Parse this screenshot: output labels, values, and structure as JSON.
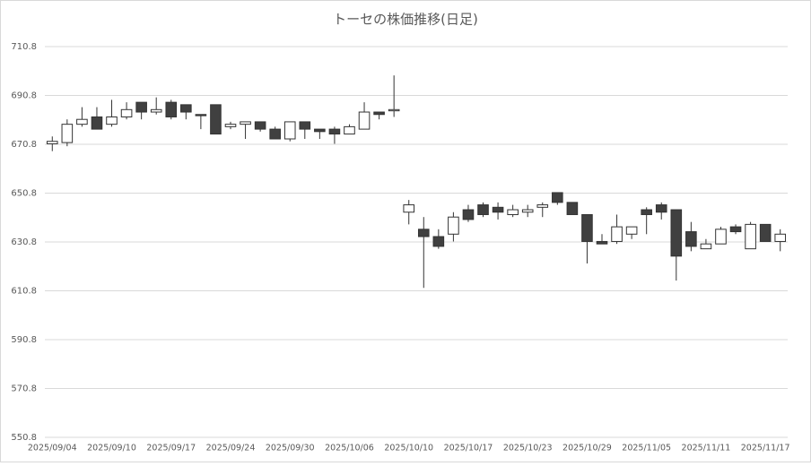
{
  "chart_data": {
    "type": "candlestick",
    "title": "トーセの株価推移(日足)",
    "categories": [
      "2025/09/04",
      null,
      null,
      null,
      "2025/09/10",
      null,
      null,
      null,
      "2025/09/17",
      null,
      null,
      null,
      "2025/09/24",
      null,
      null,
      null,
      "2025/09/30",
      null,
      null,
      null,
      "2025/10/06",
      null,
      null,
      null,
      "2025/10/10",
      null,
      null,
      null,
      "2025/10/17",
      null,
      null,
      null,
      "2025/10/23",
      null,
      null,
      null,
      "2025/10/29",
      null,
      null,
      null,
      "2025/11/05",
      null,
      null,
      null,
      "2025/11/11",
      null,
      null,
      null,
      "2025/11/17",
      null
    ],
    "open": [
      671,
      671.5,
      679,
      682,
      679,
      682,
      688,
      684,
      688,
      687,
      683,
      687,
      678,
      679,
      680,
      677,
      673,
      680,
      677,
      677,
      675,
      677,
      684,
      684.5,
      643,
      636,
      633,
      634,
      644,
      646,
      645,
      642,
      643,
      645,
      651,
      647,
      642,
      631,
      631,
      634,
      644,
      646,
      644,
      635,
      628,
      630,
      637,
      628,
      638,
      631
    ],
    "high": [
      674,
      681,
      686,
      686,
      689,
      688,
      688,
      690,
      689,
      687,
      683,
      687,
      680,
      680,
      680,
      678,
      680,
      680,
      677,
      678,
      679,
      688,
      684,
      699,
      648,
      641,
      636,
      643,
      646,
      647,
      647,
      646,
      646,
      647,
      651,
      647,
      642,
      634,
      642,
      637,
      645,
      647,
      644,
      639,
      632,
      637,
      638,
      639,
      638,
      636
    ],
    "low": [
      668,
      670,
      678,
      677,
      678,
      681,
      681,
      683,
      681,
      681,
      677,
      675,
      677,
      673,
      676,
      673,
      672,
      673,
      673,
      671,
      675,
      677,
      681,
      682,
      638,
      612,
      628,
      631,
      639,
      641,
      640,
      641,
      641,
      641,
      646,
      642,
      622,
      630,
      630,
      632,
      634,
      640,
      615,
      627,
      628,
      630,
      634,
      628,
      631,
      627
    ],
    "close": [
      672,
      679,
      681,
      677,
      682,
      685,
      684,
      685,
      682,
      684,
      682.5,
      675,
      679,
      680,
      677,
      673,
      680,
      677,
      676,
      675,
      678,
      684,
      683,
      685,
      646,
      633,
      629,
      641,
      640,
      642,
      643,
      644,
      644,
      646,
      647,
      642,
      631,
      630,
      637,
      637,
      642,
      643,
      625,
      629,
      630,
      636,
      635,
      638,
      631,
      634
    ],
    "up_color": "#ffffff",
    "down_color": "#404040",
    "edge_color": "#333333",
    "ylim": [
      550.8,
      710.8
    ],
    "yticks": [
      550.8,
      570.8,
      590.8,
      610.8,
      630.8,
      650.8,
      670.8,
      690.8,
      710.8
    ],
    "grid": true
  }
}
